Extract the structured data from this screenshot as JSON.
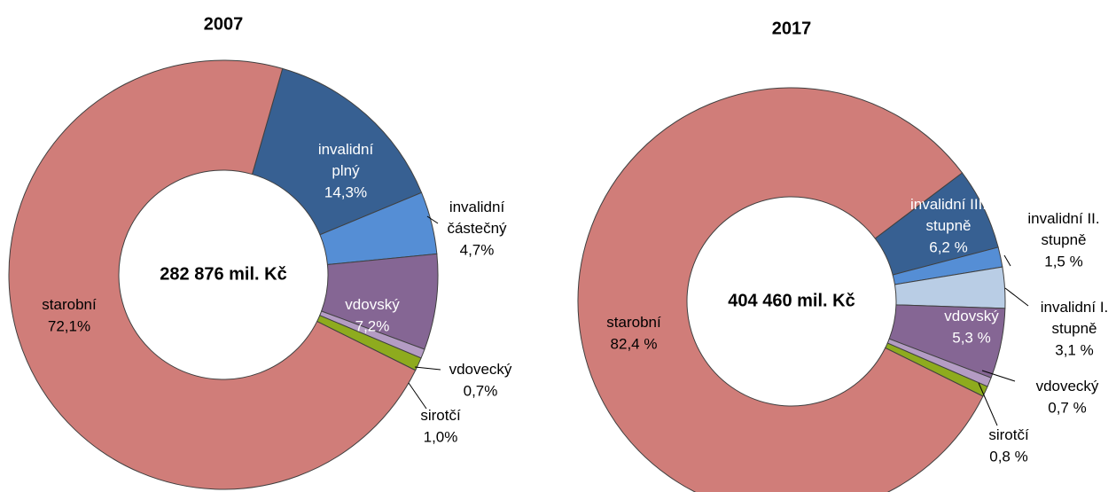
{
  "chart_data": [
    {
      "type": "donut",
      "title": "2007",
      "center_label": "282 876 mil. Kč",
      "categories": [
        "invalidní plný",
        "invalidní částečný",
        "vdovský",
        "vdovecký",
        "sirotčí",
        "starobní"
      ],
      "values": [
        14.3,
        4.7,
        7.2,
        0.7,
        1.0,
        72.1
      ],
      "value_labels": [
        "14,3%",
        "4,7%",
        "7,2%",
        "0,7%",
        "1,0%",
        "72,1%"
      ],
      "colors": [
        "#376092",
        "#558ed5",
        "#856694",
        "#b49cc4",
        "#8eab1e",
        "#d07d79"
      ]
    },
    {
      "type": "donut",
      "title": "2017",
      "center_label": "404 460 mil. Kč",
      "categories": [
        "invalidní III. stupně",
        "invalidní II. stupně",
        "invalidní I. stupně",
        "vdovský",
        "vdovecký",
        "sirotčí",
        "starobní"
      ],
      "values": [
        6.2,
        1.5,
        3.1,
        5.3,
        0.7,
        0.8,
        82.4
      ],
      "value_labels": [
        "6,2 %",
        "1,5 %",
        "3,1 %",
        "5,3 %",
        "0,7 %",
        "0,8 %",
        "82,4 %"
      ],
      "colors": [
        "#376092",
        "#558ed5",
        "#b9cde5",
        "#856694",
        "#b49cc4",
        "#8eab1e",
        "#d07d79"
      ]
    }
  ]
}
